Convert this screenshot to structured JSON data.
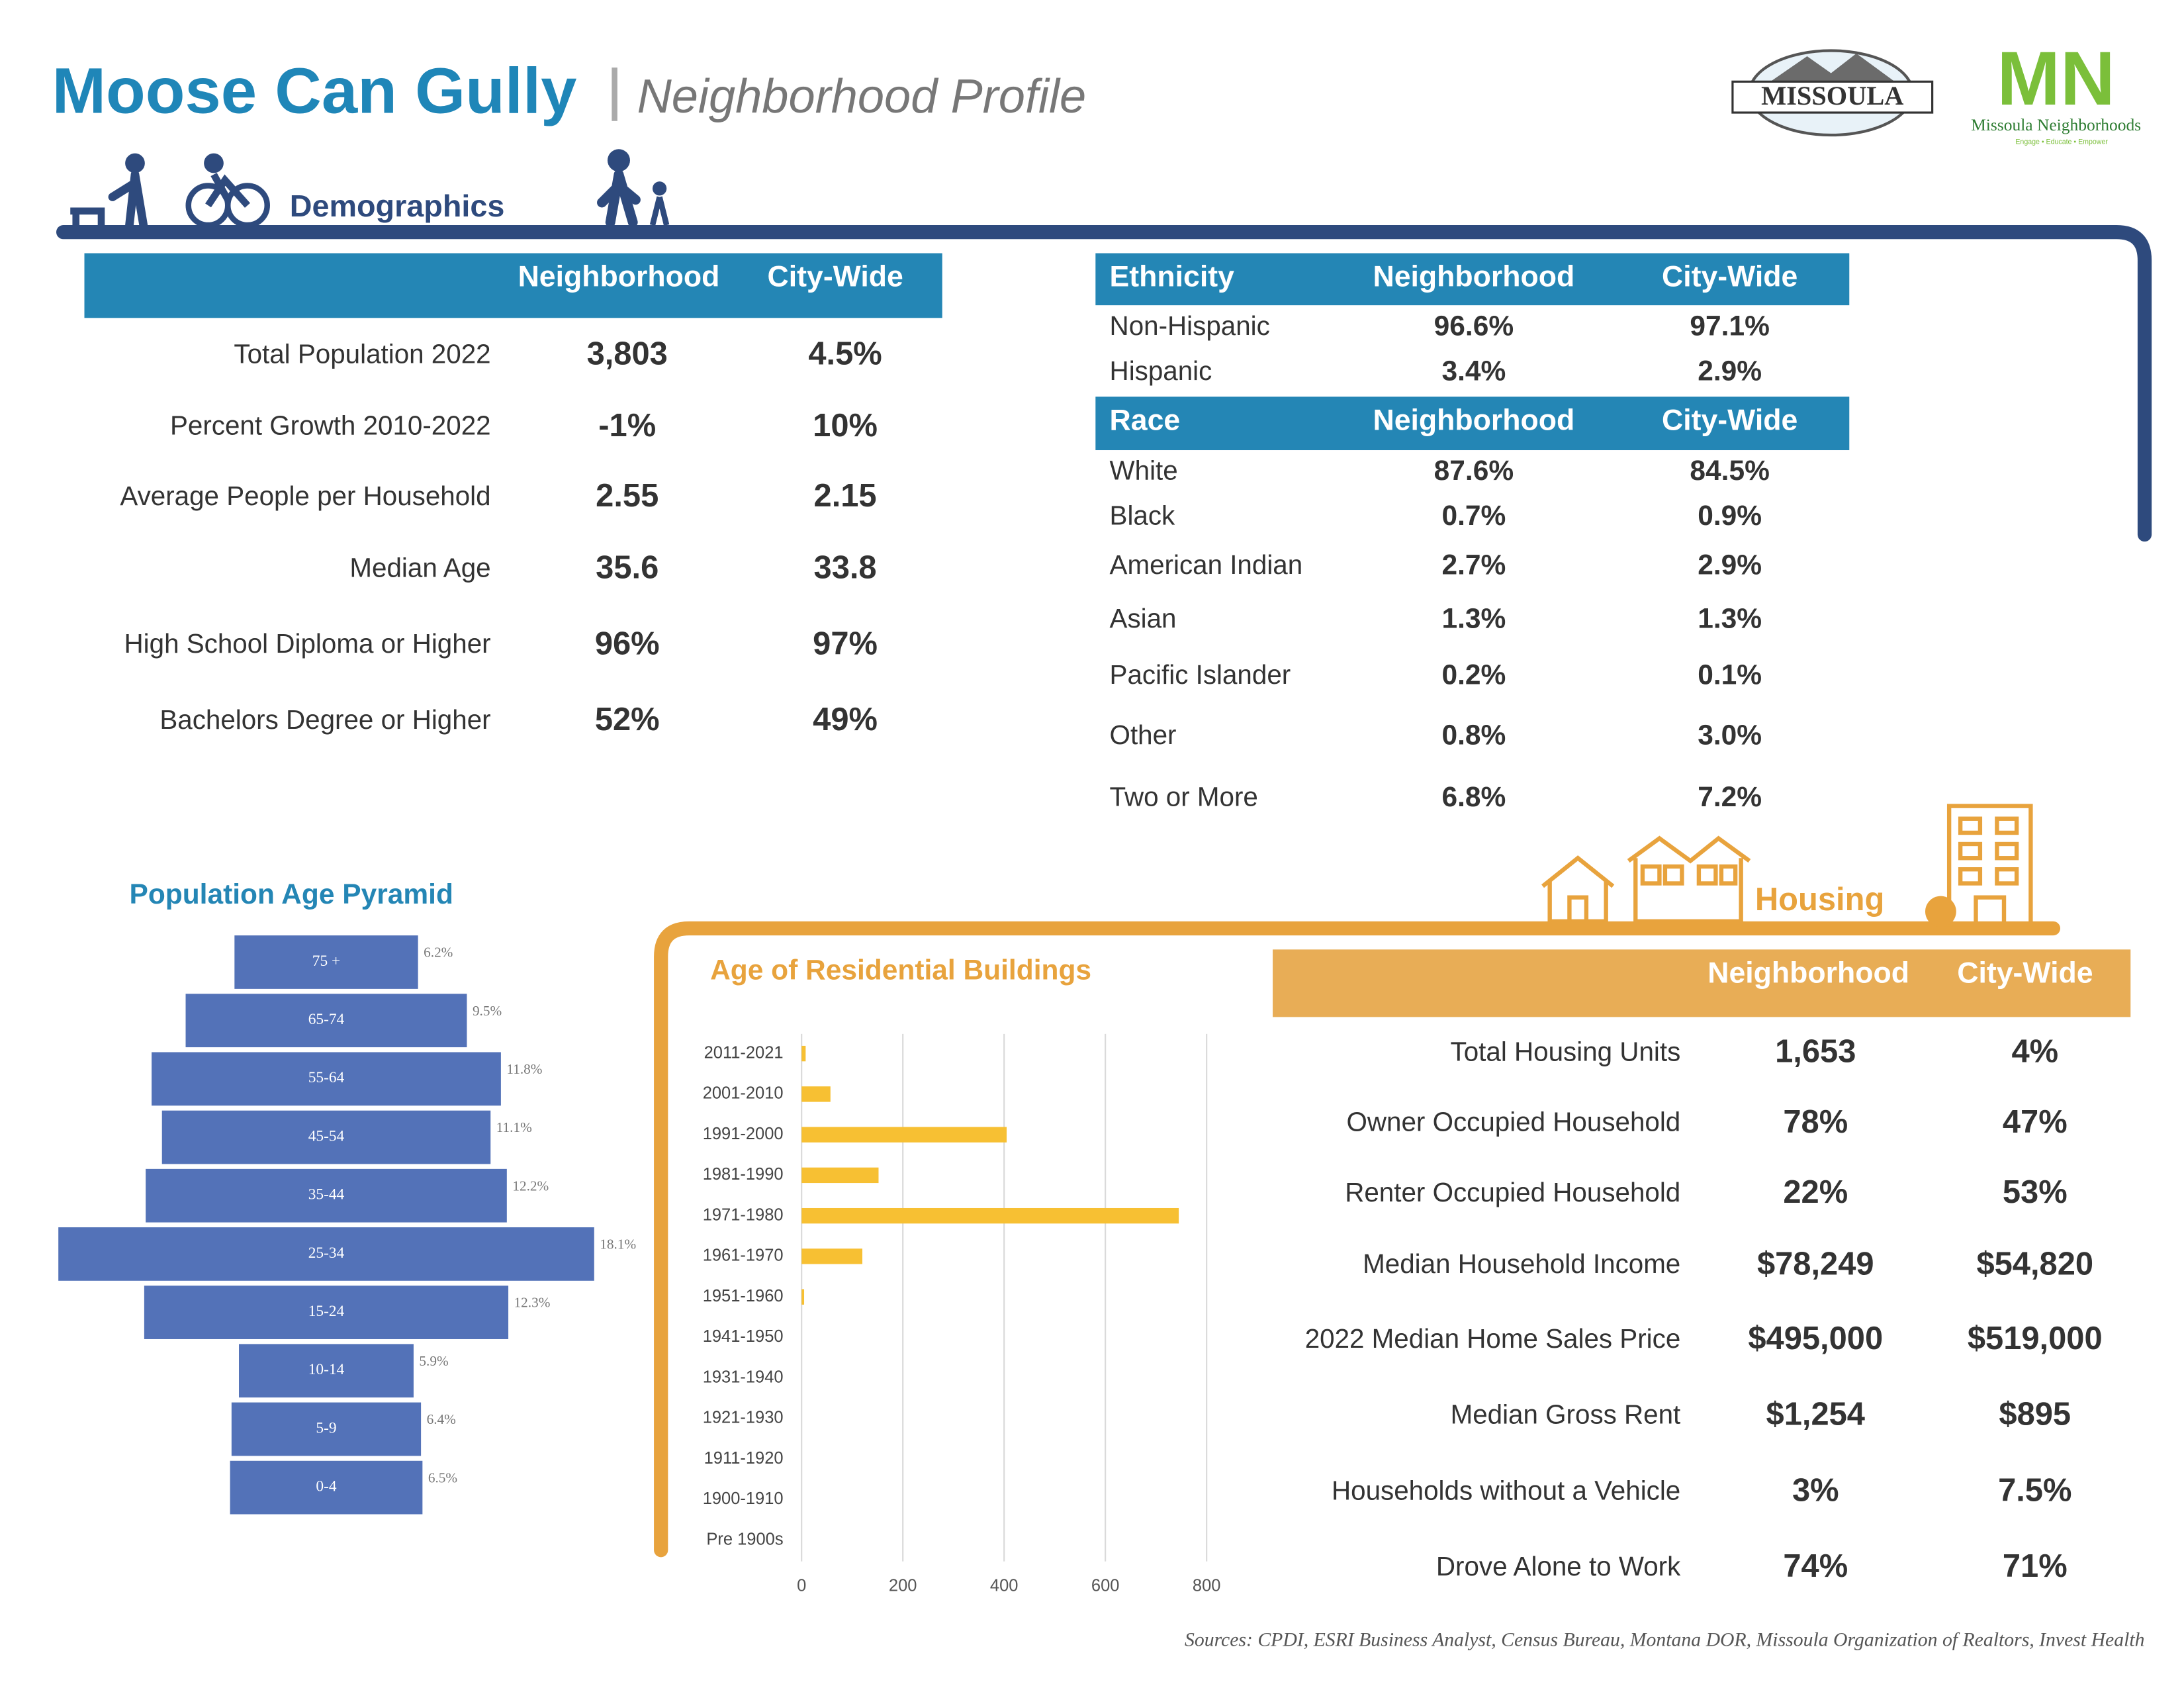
{
  "header": {
    "title": "Moose Can Gully",
    "subtitle": "Neighborhood Profile"
  },
  "logos": {
    "city": "MISSOULA",
    "neighborhoods_mark": "MN",
    "neighborhoods_name": "Missoula Neighborhoods",
    "neighborhoods_tagline": "Engage • Educate • Empower"
  },
  "demographics": {
    "heading": "Demographics",
    "columns": [
      "Neighborhood",
      "City-Wide"
    ],
    "rows": [
      [
        "Total Population 2022",
        "3,803",
        "4.5%"
      ],
      [
        "Percent Growth 2010-2022",
        "-1%",
        "10%"
      ],
      [
        "Average People per Household",
        "2.55",
        "2.15"
      ],
      [
        "Median Age",
        "35.6",
        "33.8"
      ],
      [
        "High School Diploma or Higher",
        "96%",
        "97%"
      ],
      [
        "Bachelors Degree or Higher",
        "52%",
        "49%"
      ]
    ]
  },
  "ethnicity": {
    "columns": [
      "Ethnicity",
      "Neighborhood",
      "City-Wide"
    ],
    "rows": [
      [
        "Non-Hispanic",
        "96.6%",
        "97.1%"
      ],
      [
        "Hispanic",
        "3.4%",
        "2.9%"
      ]
    ]
  },
  "race": {
    "columns": [
      "Race",
      "Neighborhood",
      "City-Wide"
    ],
    "rows": [
      [
        "White",
        "87.6%",
        "84.5%"
      ],
      [
        "Black",
        "0.7%",
        "0.9%"
      ],
      [
        "American Indian",
        "2.7%",
        "2.9%"
      ],
      [
        "Asian",
        "1.3%",
        "1.3%"
      ],
      [
        "Pacific Islander",
        "0.2%",
        "0.1%"
      ],
      [
        "Other",
        "0.8%",
        "3.0%"
      ],
      [
        "Two or More",
        "6.8%",
        "7.2%"
      ]
    ]
  },
  "age_pyramid": {
    "type": "bar",
    "title": "Population Age Pyramid",
    "categories": [
      "75 +",
      "65-74",
      "55-64",
      "45-54",
      "35-44",
      "25-34",
      "15-24",
      "10-14",
      "5-9",
      "0-4"
    ],
    "values": [
      6.2,
      9.5,
      11.8,
      11.1,
      12.2,
      18.1,
      12.3,
      5.9,
      6.4,
      6.5
    ],
    "value_labels": [
      "6.2%",
      "9.5%",
      "11.8%",
      "11.1%",
      "12.2%",
      "18.1%",
      "12.3%",
      "5.9%",
      "6.4%",
      "6.5%"
    ],
    "color": "#5372b8"
  },
  "building_age": {
    "type": "bar",
    "title": "Age of Residential Buildings",
    "categories": [
      "2011-2021",
      "2001-2010",
      "1991-2000",
      "1981-1990",
      "1971-1980",
      "1961-1970",
      "1951-1960",
      "1941-1950",
      "1931-1940",
      "1921-1930",
      "1911-1920",
      "1900-1910",
      "Pre 1900s"
    ],
    "values": [
      8,
      57,
      405,
      152,
      745,
      120,
      5,
      0,
      0,
      0,
      0,
      0,
      0
    ],
    "color": "#f7c033",
    "xlim": [
      0,
      800
    ],
    "xticks": [
      0,
      200,
      400,
      600,
      800
    ],
    "grid": true
  },
  "housing": {
    "heading": "Housing",
    "columns": [
      "Neighborhood",
      "City-Wide"
    ],
    "rows": [
      [
        "Total Housing Units",
        "1,653",
        "4%"
      ],
      [
        "Owner Occupied Household",
        "78%",
        "47%"
      ],
      [
        "Renter Occupied Household",
        "22%",
        "53%"
      ],
      [
        "Median Household Income",
        "$78,249",
        "$54,820"
      ],
      [
        "2022 Median Home Sales Price",
        "$495,000",
        "$519,000"
      ],
      [
        "Median Gross Rent",
        "$1,254",
        "$895"
      ],
      [
        "Households without a Vehicle",
        "3%",
        "7.5%"
      ],
      [
        "Drove Alone to Work",
        "74%",
        "71%"
      ]
    ]
  },
  "sources": "Sources: CPDI, ESRI Business Analyst, Census Bureau, Montana DOR, Missoula Organization of Realtors, Invest Health"
}
